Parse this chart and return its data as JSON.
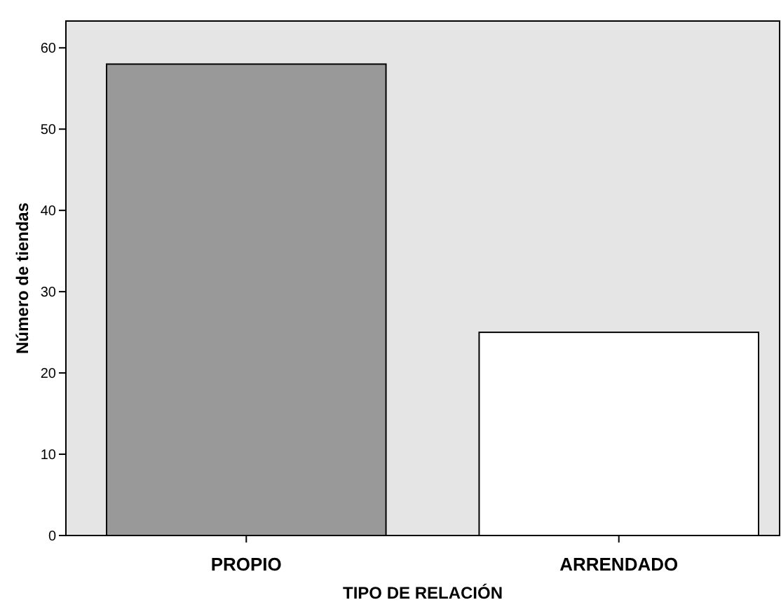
{
  "chart_data": {
    "type": "bar",
    "xlabel": "TIPO DE RELACIÓN",
    "ylabel": "Número de tiendas",
    "categories": [
      "PROPIO",
      "ARRENDADO"
    ],
    "values": [
      58,
      25
    ],
    "colors": [
      "#999999",
      "#ffffff"
    ],
    "ylim": [
      0,
      63.3
    ],
    "yticks": [
      0,
      10,
      20,
      30,
      40,
      50,
      60
    ],
    "grid": false
  }
}
